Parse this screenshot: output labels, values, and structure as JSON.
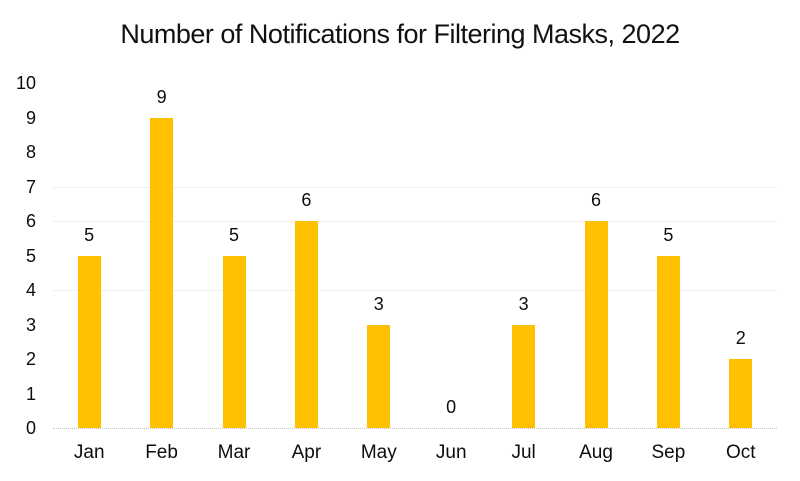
{
  "chart_data": {
    "type": "bar",
    "title": "Number of Notifications for Filtering Masks, 2022",
    "categories": [
      "Jan",
      "Feb",
      "Mar",
      "Apr",
      "May",
      "Jun",
      "Jul",
      "Aug",
      "Sep",
      "Oct"
    ],
    "values": [
      5,
      9,
      5,
      6,
      3,
      0,
      3,
      6,
      5,
      2
    ],
    "data_labels": [
      "5",
      "9",
      "5",
      "6",
      "3",
      "0",
      "3",
      "6",
      "5",
      "2"
    ],
    "xlabel": "",
    "ylabel": "",
    "ylim": [
      0,
      10
    ],
    "yticks": [
      0,
      1,
      2,
      3,
      4,
      5,
      6,
      7,
      8,
      9,
      10
    ],
    "visible_gridlines_at": [
      4,
      6,
      7
    ],
    "legend": "none",
    "grid": "faint-horizontal",
    "bar_color": "#FFC000",
    "text_color": "#0d0d0d",
    "gridline_color": "#efefef",
    "baseline_style": "dotted"
  }
}
